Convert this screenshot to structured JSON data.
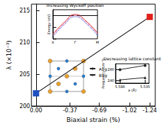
{
  "chart_data": [
    {
      "type": "line",
      "xlabel": "Biaxial strain (%)",
      "ylabel": "λ (×10⁻³)",
      "x": [
        0,
        -1.24
      ],
      "series": [
        {
          "values": [
            202,
            214
          ],
          "color": "#000000",
          "colors": [
            "#1f4fbf",
            "#e0201b"
          ],
          "marker": "square"
        }
      ],
      "xlim": [
        0.05,
        -1.3
      ],
      "xticks": [
        {
          "value": 0,
          "label": "0.00"
        },
        -0.37,
        -0.69,
        -1.02,
        -1.24
      ],
      "ylim": [
        200,
        216
      ],
      "yticks": [
        200,
        205,
        210,
        215
      ],
      "grid": false
    },
    {
      "type": "line",
      "title": "Increasing Wyckoff position",
      "ylabel": "Energy (eV)",
      "categories": [
        "X",
        null,
        "Γ",
        null,
        "M"
      ],
      "series": [
        {
          "values": [
            -1.6,
            -0.6,
            0.1,
            -0.5,
            -1.5
          ],
          "color": "#d62728",
          "line_style": "solid"
        },
        {
          "values": [
            -1.7,
            -0.7,
            0.0,
            -0.6,
            -1.6
          ],
          "color": "#e377c2",
          "line_style": "dashed"
        },
        {
          "values": [
            -1.8,
            -0.8,
            -0.1,
            -0.7,
            -1.7
          ],
          "color": "#1f3fbf",
          "line_style": "dotted"
        }
      ],
      "ylim": [
        -2,
        0.5
      ],
      "yticks": [
        -2,
        -1,
        0
      ],
      "tick_labels": "x",
      "grid": false
    },
    {
      "type": "line",
      "title": "Decreasing lattice constant",
      "xlabel": "a (Å)",
      "ylabel": "Frequency (cm⁻¹)",
      "x": [
        5.586,
        5.535
      ],
      "series": [
        {
          "name": "A1g",
          "values": [
            279,
            294
          ],
          "color": "#222222",
          "marker": "circle"
        },
        {
          "name": "B1g",
          "values": [
            242,
            250
          ],
          "color": "#222222",
          "marker": "triangle"
        }
      ],
      "xlim": [
        5.595,
        5.527
      ],
      "xticks": [
        5.586,
        5.535
      ],
      "ylim": [
        230,
        300
      ],
      "yticks": [
        240,
        280
      ],
      "legend": "left",
      "grid": false
    }
  ]
}
